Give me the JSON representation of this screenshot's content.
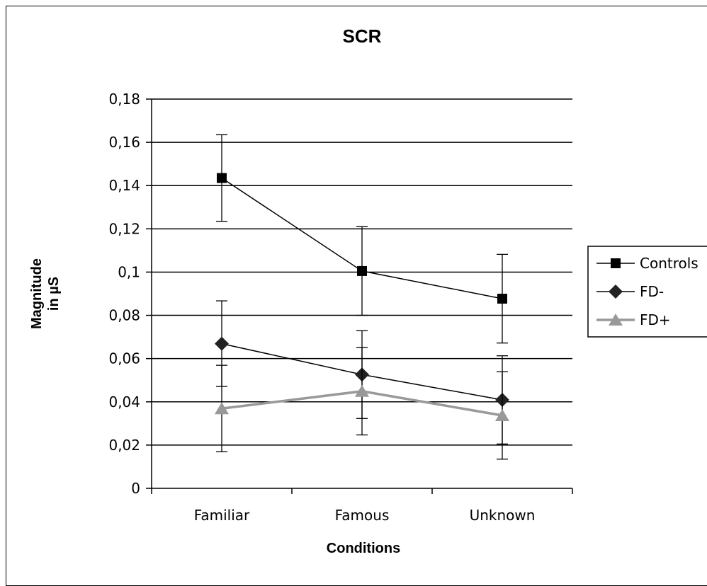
{
  "chart_data": {
    "type": "line",
    "title": "SCR",
    "xlabel": "Conditions",
    "ylabel_line1": "Magnitude",
    "ylabel_line2": "in µS",
    "ylim": [
      0,
      0.18
    ],
    "yticks": [
      {
        "value": 0,
        "label": "0"
      },
      {
        "value": 0.02,
        "label": "0,02"
      },
      {
        "value": 0.04,
        "label": "0,04"
      },
      {
        "value": 0.06,
        "label": "0,06"
      },
      {
        "value": 0.08,
        "label": "0,08"
      },
      {
        "value": 0.1,
        "label": "0,1"
      },
      {
        "value": 0.12,
        "label": "0,12"
      },
      {
        "value": 0.14,
        "label": "0,14"
      },
      {
        "value": 0.16,
        "label": "0,16"
      },
      {
        "value": 0.18,
        "label": "0,18"
      }
    ],
    "categories": [
      "Familiar",
      "Famous",
      "Unknown"
    ],
    "grid": true,
    "legend_position": "right",
    "series": [
      {
        "name": "Controls",
        "marker": "square",
        "color": "#000000",
        "values": [
          0.1435,
          0.1005,
          0.0877
        ],
        "errors": [
          0.02,
          0.0205,
          0.0205
        ]
      },
      {
        "name": "FD-",
        "marker": "diamond",
        "color": "#222222",
        "values": [
          0.0669,
          0.0526,
          0.0409
        ],
        "errors": [
          0.0198,
          0.0203,
          0.0204
        ]
      },
      {
        "name": "FD+",
        "marker": "triangle",
        "color": "#999999",
        "values": [
          0.0369,
          0.0449,
          0.0337
        ],
        "errors": [
          0.02,
          0.0202,
          0.0202
        ]
      }
    ]
  }
}
